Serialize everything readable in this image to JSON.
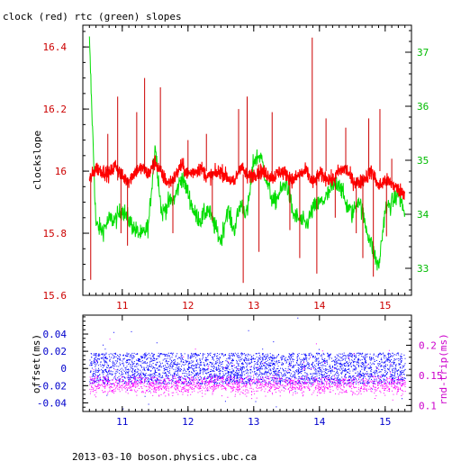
{
  "title": "clock (red) rtc (green) slopes",
  "footer": "2013-03-10  boson.physics.ubc.ca",
  "colors": {
    "clock": "#ff0000",
    "clock_spike": "#cc0000",
    "rtc": "#00dd00",
    "offset": "#0000ff",
    "roundtrip": "#ff00ff",
    "axis_left_top": "#cc0000",
    "axis_right_top": "#00bb00",
    "axis_left_bottom": "#0000cc",
    "axis_right_bottom": "#cc00cc",
    "x_tick_top": "#cc0000",
    "x_tick_bottom": "#0000cc",
    "frame": "#000000"
  },
  "chart_data": [
    {
      "type": "line",
      "title": "clock (red) rtc (green) slopes",
      "ylabel": "clockslope",
      "xlim": [
        10.4,
        15.4
      ],
      "ylim": [
        15.6,
        16.47
      ],
      "y2lim": [
        32.5,
        37.5
      ],
      "x_ticks": [
        11,
        12,
        13,
        14,
        15
      ],
      "y_ticks": [
        15.6,
        15.8,
        16,
        16.2,
        16.4
      ],
      "y_tick_labels": [
        "15.6",
        "15.8",
        "16",
        "16.2",
        "16.4"
      ],
      "y2_ticks": [
        33,
        34,
        35,
        36,
        37
      ],
      "y2_tick_labels": [
        "33",
        "34",
        "35",
        "36",
        "37"
      ],
      "series": [
        {
          "axis": "left",
          "x": [
            10.5,
            10.6,
            10.7,
            10.8,
            10.9,
            11.0,
            11.1,
            11.2,
            11.3,
            11.4,
            11.5,
            11.6,
            11.7,
            11.8,
            11.9,
            12.0,
            12.1,
            12.2,
            12.3,
            12.4,
            12.5,
            12.6,
            12.7,
            12.8,
            12.9,
            13.0,
            13.1,
            13.2,
            13.3,
            13.4,
            13.5,
            13.6,
            13.7,
            13.8,
            13.9,
            14.0,
            14.1,
            14.2,
            14.3,
            14.4,
            14.5,
            14.6,
            14.7,
            14.8,
            14.9,
            15.0,
            15.1,
            15.2,
            15.3
          ],
          "values": [
            15.97,
            16.01,
            16.0,
            15.99,
            16.02,
            15.98,
            15.97,
            16.0,
            16.01,
            15.99,
            16.03,
            15.99,
            15.96,
            15.98,
            16.02,
            15.99,
            16.0,
            16.01,
            15.98,
            15.99,
            16.0,
            15.98,
            15.96,
            16.02,
            15.98,
            15.99,
            16.0,
            15.99,
            15.98,
            16.0,
            15.99,
            15.97,
            15.99,
            16.0,
            15.96,
            15.99,
            15.98,
            15.97,
            16.0,
            16.01,
            15.97,
            15.96,
            15.98,
            16.0,
            15.95,
            15.97,
            15.96,
            15.94,
            15.93
          ]
        },
        {
          "axis": "right",
          "x": [
            10.5,
            10.6,
            10.7,
            10.8,
            10.9,
            11.0,
            11.1,
            11.2,
            11.3,
            11.4,
            11.5,
            11.6,
            11.7,
            11.8,
            11.9,
            12.0,
            12.1,
            12.2,
            12.3,
            12.4,
            12.5,
            12.6,
            12.7,
            12.8,
            12.9,
            13.0,
            13.1,
            13.2,
            13.3,
            13.4,
            13.5,
            13.6,
            13.7,
            13.8,
            13.9,
            14.0,
            14.1,
            14.2,
            14.3,
            14.4,
            14.5,
            14.6,
            14.7,
            14.8,
            14.9,
            15.0,
            15.1,
            15.2,
            15.3
          ],
          "values": [
            37.2,
            33.8,
            33.7,
            33.9,
            33.9,
            34.1,
            33.9,
            33.7,
            33.6,
            33.8,
            35.3,
            34.0,
            34.2,
            34.3,
            34.7,
            34.4,
            34.0,
            33.9,
            34.1,
            33.8,
            33.5,
            34.1,
            33.7,
            34.2,
            34.0,
            35.0,
            35.1,
            34.6,
            34.2,
            34.4,
            34.6,
            34.0,
            33.9,
            33.8,
            34.1,
            34.2,
            34.3,
            34.5,
            34.6,
            34.2,
            34.0,
            34.3,
            33.8,
            33.4,
            33.0,
            34.1,
            34.2,
            34.4,
            34.0
          ]
        }
      ],
      "spikes": [
        {
          "x": 10.52,
          "base": 15.98,
          "to": 15.65
        },
        {
          "x": 10.78,
          "base": 16.0,
          "to": 16.12
        },
        {
          "x": 10.93,
          "base": 15.97,
          "to": 16.24
        },
        {
          "x": 10.98,
          "base": 16.01,
          "to": 15.8
        },
        {
          "x": 11.08,
          "base": 15.98,
          "to": 15.76
        },
        {
          "x": 11.22,
          "base": 16.0,
          "to": 16.19
        },
        {
          "x": 11.34,
          "base": 16.0,
          "to": 16.3
        },
        {
          "x": 11.47,
          "base": 15.99,
          "to": 16.04
        },
        {
          "x": 11.58,
          "base": 16.0,
          "to": 16.27
        },
        {
          "x": 11.77,
          "base": 15.98,
          "to": 15.8
        },
        {
          "x": 12.0,
          "base": 15.99,
          "to": 16.1
        },
        {
          "x": 12.28,
          "base": 16.0,
          "to": 16.12
        },
        {
          "x": 12.37,
          "base": 16.0,
          "to": 15.84
        },
        {
          "x": 12.77,
          "base": 15.99,
          "to": 16.2
        },
        {
          "x": 12.84,
          "base": 15.99,
          "to": 15.64
        },
        {
          "x": 12.9,
          "base": 15.98,
          "to": 16.24
        },
        {
          "x": 13.08,
          "base": 16.0,
          "to": 15.74
        },
        {
          "x": 13.28,
          "base": 15.99,
          "to": 16.19
        },
        {
          "x": 13.55,
          "base": 15.98,
          "to": 15.81
        },
        {
          "x": 13.7,
          "base": 15.99,
          "to": 15.72
        },
        {
          "x": 13.89,
          "base": 15.98,
          "to": 16.43
        },
        {
          "x": 13.96,
          "base": 15.99,
          "to": 15.67
        },
        {
          "x": 14.1,
          "base": 16.0,
          "to": 16.17
        },
        {
          "x": 14.24,
          "base": 15.98,
          "to": 15.85
        },
        {
          "x": 14.4,
          "base": 15.99,
          "to": 16.14
        },
        {
          "x": 14.56,
          "base": 15.98,
          "to": 15.8
        },
        {
          "x": 14.66,
          "base": 15.99,
          "to": 15.72
        },
        {
          "x": 14.75,
          "base": 16.0,
          "to": 16.17
        },
        {
          "x": 14.82,
          "base": 15.98,
          "to": 15.66
        },
        {
          "x": 14.92,
          "base": 16.0,
          "to": 16.2
        },
        {
          "x": 15.02,
          "base": 15.98,
          "to": 15.79
        },
        {
          "x": 15.1,
          "base": 15.97,
          "to": 16.04
        }
      ]
    },
    {
      "type": "scatter",
      "ylabel": "offset(ms)",
      "y2label": "rnd-trip(ms)",
      "xlim": [
        10.4,
        15.4
      ],
      "ylim": [
        -0.05,
        0.062
      ],
      "y2lim": [
        0.09,
        0.25
      ],
      "x_ticks": [
        11,
        12,
        13,
        14,
        15
      ],
      "y_ticks": [
        -0.04,
        -0.02,
        0,
        0.02,
        0.04
      ],
      "y_tick_labels": [
        "-0.04",
        "-0.02",
        "0",
        "0.02",
        "0.04"
      ],
      "y2_ticks": [
        0.1,
        0.15,
        0.2
      ],
      "y2_tick_labels": [
        "0.1",
        "0.15",
        "0.2"
      ],
      "series": [
        {
          "axis": "left",
          "x_range": [
            10.5,
            15.3
          ],
          "center": 0.0,
          "spread": 0.018,
          "count": 6000
        },
        {
          "axis": "right",
          "x_range": [
            10.5,
            15.3
          ],
          "center": 0.14,
          "spread": 0.018,
          "count": 3500
        }
      ]
    }
  ],
  "x_tick_labels": [
    "11",
    "12",
    "13",
    "14",
    "15"
  ]
}
